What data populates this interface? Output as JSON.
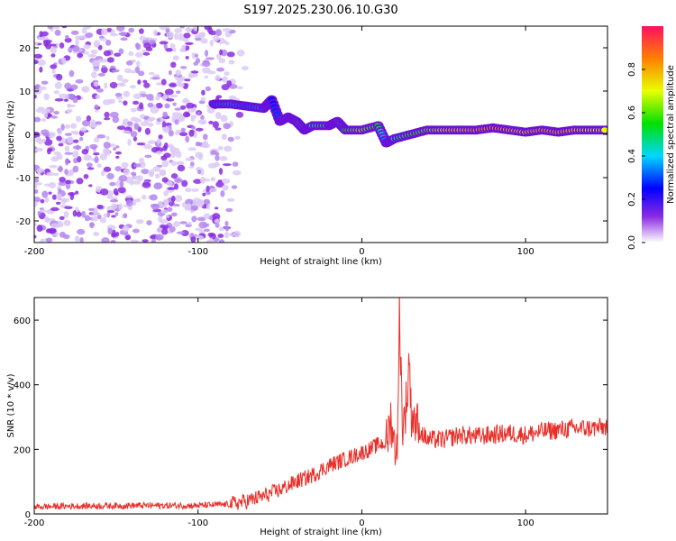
{
  "title": "S197.2025.230.06.10.G30",
  "colors": {
    "series": "#e8302a",
    "axis": "#000000",
    "background": "#ffffff",
    "speckle_primary": "#8a2be2"
  },
  "chart_data": [
    {
      "type": "heatmap",
      "xlabel": "Height of straight line (km)",
      "ylabel": "Frequency (Hz)",
      "xlim": [
        -200,
        150
      ],
      "ylim": [
        -25,
        25
      ],
      "xticks": [
        -200,
        -100,
        0,
        100
      ],
      "yticks": [
        -20,
        -10,
        0,
        10,
        20
      ],
      "colorbar": {
        "label": "Normalized spectral amplitude",
        "range": [
          0,
          1
        ],
        "ticks": [
          0.0,
          0.2,
          0.4,
          0.6,
          0.8
        ]
      },
      "ridge": [
        {
          "x": -90,
          "y": 7,
          "v": 0.3
        },
        {
          "x": -80,
          "y": 7,
          "v": 0.35
        },
        {
          "x": -70,
          "y": 6.5,
          "v": 0.3
        },
        {
          "x": -60,
          "y": 6,
          "v": 0.35
        },
        {
          "x": -55,
          "y": 8,
          "v": 0.25
        },
        {
          "x": -50,
          "y": 3,
          "v": 0.3
        },
        {
          "x": -45,
          "y": 4,
          "v": 0.4
        },
        {
          "x": -40,
          "y": 3,
          "v": 0.35
        },
        {
          "x": -35,
          "y": 1,
          "v": 0.45
        },
        {
          "x": -30,
          "y": 2,
          "v": 0.45
        },
        {
          "x": -20,
          "y": 2,
          "v": 0.5
        },
        {
          "x": -15,
          "y": 3,
          "v": 0.4
        },
        {
          "x": -10,
          "y": 1,
          "v": 0.55
        },
        {
          "x": 0,
          "y": 1,
          "v": 0.65
        },
        {
          "x": 10,
          "y": 2,
          "v": 0.55
        },
        {
          "x": 15,
          "y": -2,
          "v": 0.3
        },
        {
          "x": 20,
          "y": -1,
          "v": 0.45
        },
        {
          "x": 30,
          "y": 0,
          "v": 0.55
        },
        {
          "x": 40,
          "y": 1,
          "v": 0.6
        },
        {
          "x": 50,
          "y": 1,
          "v": 0.7
        },
        {
          "x": 60,
          "y": 1,
          "v": 0.75
        },
        {
          "x": 70,
          "y": 1,
          "v": 0.8
        },
        {
          "x": 80,
          "y": 1.5,
          "v": 0.85
        },
        {
          "x": 90,
          "y": 1,
          "v": 0.8
        },
        {
          "x": 100,
          "y": 0.5,
          "v": 0.75
        },
        {
          "x": 110,
          "y": 1,
          "v": 0.8
        },
        {
          "x": 120,
          "y": 0.5,
          "v": 0.8
        },
        {
          "x": 130,
          "y": 1,
          "v": 0.75
        },
        {
          "x": 140,
          "y": 1,
          "v": 0.7
        },
        {
          "x": 150,
          "y": 1,
          "v": 0.7
        }
      ],
      "noise_region_x": [
        -200,
        -70
      ]
    },
    {
      "type": "line",
      "xlabel": "Height of straight line (km)",
      "ylabel": "SNR (10 * v/v)",
      "xlim": [
        -200,
        150
      ],
      "ylim": [
        0,
        670
      ],
      "xticks": [
        -200,
        -100,
        0,
        100
      ],
      "yticks": [
        0,
        200,
        400,
        600
      ],
      "series": [
        {
          "name": "SNR",
          "x": [
            -200,
            -180,
            -160,
            -140,
            -120,
            -100,
            -90,
            -80,
            -70,
            -60,
            -50,
            -40,
            -30,
            -20,
            -10,
            0,
            5,
            10,
            15,
            18,
            20,
            22,
            23,
            25,
            28,
            29,
            30,
            35,
            40,
            50,
            60,
            70,
            80,
            90,
            100,
            110,
            120,
            130,
            140,
            150
          ],
          "y": [
            22,
            24,
            25,
            26,
            26,
            26,
            28,
            30,
            40,
            55,
            75,
            100,
            120,
            150,
            170,
            190,
            200,
            215,
            220,
            300,
            200,
            250,
            630,
            260,
            380,
            500,
            320,
            260,
            230,
            230,
            245,
            240,
            245,
            250,
            245,
            255,
            260,
            265,
            265,
            270
          ]
        }
      ]
    }
  ]
}
